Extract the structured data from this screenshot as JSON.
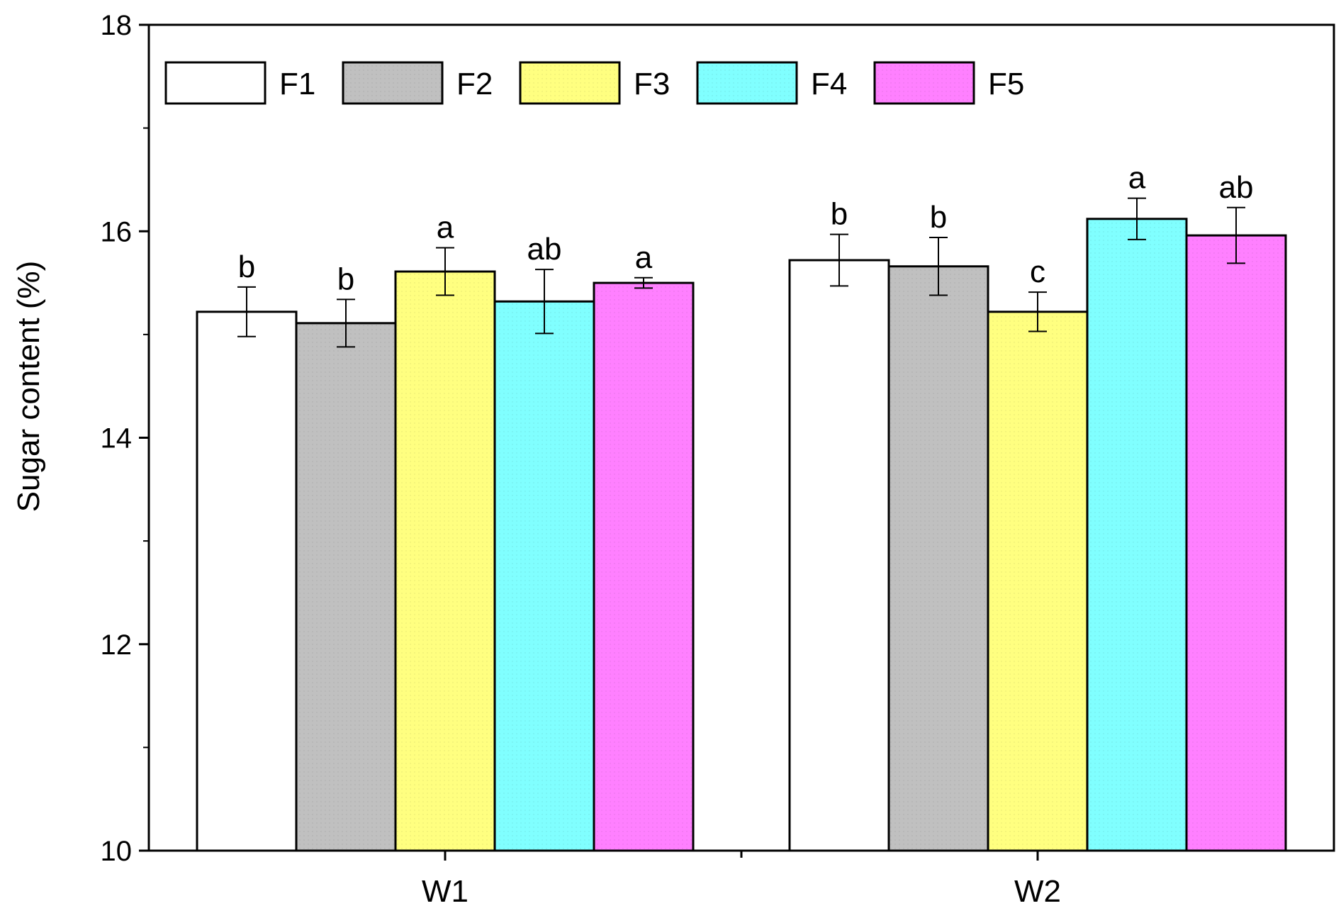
{
  "chart_data": {
    "type": "bar",
    "title": "",
    "xlabel": "",
    "ylabel": "Sugar content (%)",
    "ylim": [
      10,
      18
    ],
    "yticks": [
      10,
      12,
      14,
      16,
      18
    ],
    "categories": [
      "W1",
      "W2"
    ],
    "series": [
      {
        "name": "F1",
        "color": "#ffffff",
        "values": [
          15.22,
          15.72
        ],
        "errors": [
          0.24,
          0.25
        ],
        "letters": [
          "b",
          "b"
        ]
      },
      {
        "name": "F2",
        "color": "#c0c0c0",
        "values": [
          15.11,
          15.66
        ],
        "errors": [
          0.23,
          0.28
        ],
        "letters": [
          "b",
          "b"
        ]
      },
      {
        "name": "F3",
        "color": "#ffff80",
        "values": [
          15.61,
          15.22
        ],
        "errors": [
          0.23,
          0.19
        ],
        "letters": [
          "a",
          "c"
        ]
      },
      {
        "name": "F4",
        "color": "#80ffff",
        "values": [
          15.32,
          16.12
        ],
        "errors": [
          0.31,
          0.2
        ],
        "letters": [
          "ab",
          "a"
        ]
      },
      {
        "name": "F5",
        "color": "#ff80ff",
        "values": [
          15.5,
          15.96
        ],
        "errors": [
          0.05,
          0.27
        ],
        "letters": [
          "a",
          "ab"
        ]
      }
    ],
    "legend": "top-left",
    "grid": false
  }
}
